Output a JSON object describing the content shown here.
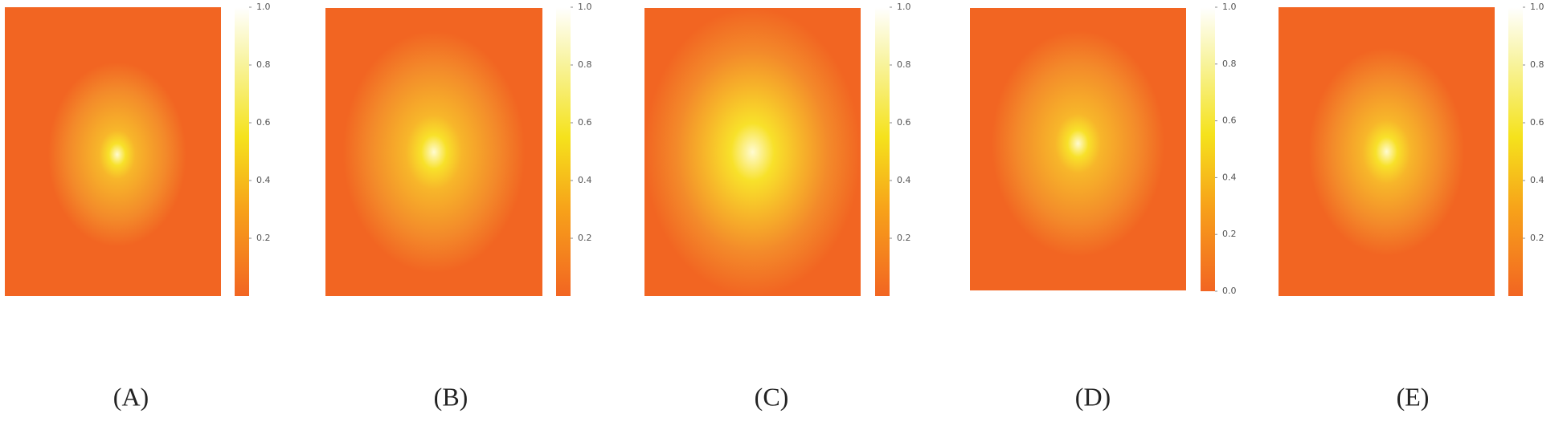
{
  "chart_data": [
    {
      "type": "heatmap",
      "label": "(A)",
      "colorbar": {
        "lim": [
          0,
          1
        ],
        "ticks": [
          0.2,
          0.4,
          0.6,
          0.8,
          {
            "value": 1,
            "label": "1.0"
          }
        ]
      }
    },
    {
      "type": "heatmap",
      "label": "(B)",
      "colorbar": {
        "lim": [
          0,
          1
        ],
        "ticks": [
          0.2,
          0.4,
          0.6,
          0.8,
          {
            "value": 1,
            "label": "1.0"
          }
        ]
      }
    },
    {
      "type": "heatmap",
      "label": "(C)",
      "colorbar": {
        "lim": [
          0,
          1
        ],
        "ticks": [
          0.2,
          0.4,
          0.6,
          0.8,
          {
            "value": 1,
            "label": "1.0"
          }
        ]
      }
    },
    {
      "type": "heatmap",
      "label": "(D)",
      "colorbar": {
        "lim": [
          0,
          1
        ],
        "ticks": [
          {
            "value": 0,
            "label": "0.0"
          },
          0.2,
          0.4,
          0.6,
          0.8,
          {
            "value": 1,
            "label": "1.0"
          }
        ]
      }
    },
    {
      "type": "heatmap",
      "label": "(E)",
      "colorbar": {
        "lim": [
          0,
          1
        ],
        "ticks": [
          0.2,
          0.4,
          0.6,
          0.8,
          {
            "value": 1,
            "label": "1.0"
          }
        ]
      }
    }
  ]
}
